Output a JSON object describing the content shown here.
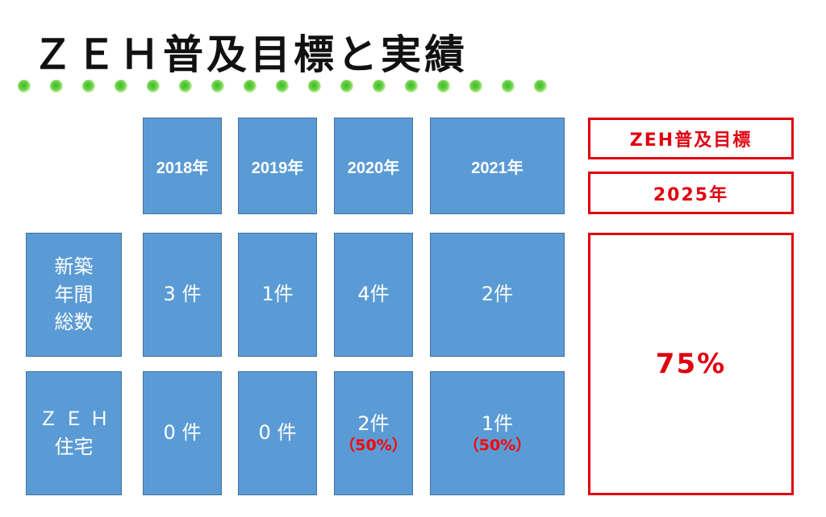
{
  "title": "ＺＥＨ普及目標と実績",
  "header_years": [
    "2018年",
    "2019年",
    "2020年",
    "2021年"
  ],
  "rows": [
    {
      "label_lines": [
        "新築",
        "年間",
        "総数"
      ],
      "values": [
        {
          "count": "3 件",
          "pct": ""
        },
        {
          "count": "1件",
          "pct": ""
        },
        {
          "count": "4件",
          "pct": ""
        },
        {
          "count": "2件",
          "pct": ""
        }
      ]
    },
    {
      "label_lines": [
        "Ｚ Ｅ Ｈ",
        "住宅"
      ],
      "values": [
        {
          "count": "0 件",
          "pct": ""
        },
        {
          "count": "0 件",
          "pct": ""
        },
        {
          "count": "2件",
          "pct": "（50%）"
        },
        {
          "count": "1件",
          "pct": "（50%）"
        }
      ]
    }
  ],
  "target": {
    "heading": "ZEH普及目標",
    "year": "2025年",
    "rate": "75%"
  },
  "colors": {
    "cell_fill": "#5b9bd5",
    "target_red": "#e0000f",
    "dots_green": "#3cb82e"
  }
}
